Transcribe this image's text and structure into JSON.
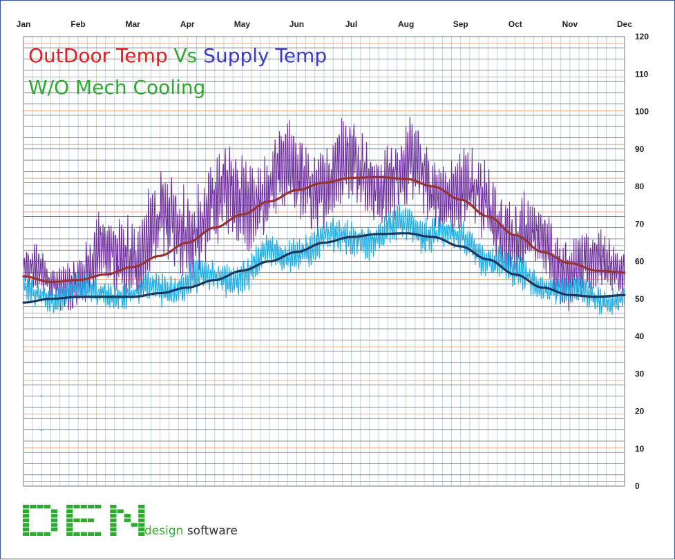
{
  "chart_data": {
    "type": "line",
    "title_parts": [
      {
        "text": "OutDoor Temp",
        "color": "#e02020"
      },
      {
        "text": " Vs ",
        "color": "#2eaa2e"
      },
      {
        "text": "Supply Temp",
        "color": "#3b3bc8"
      }
    ],
    "subtitle": {
      "text": "W/O Mech Cooling",
      "color": "#2eaa2e"
    },
    "x_tick_labels": [
      "Jan",
      "Feb",
      "Mar",
      "Apr",
      "May",
      "Jun",
      "Jul",
      "Aug",
      "Sep",
      "Oct",
      "Nov",
      "Dec"
    ],
    "y_tick_labels": [
      "0",
      "10",
      "20",
      "30",
      "40",
      "50",
      "60",
      "70",
      "80",
      "90",
      "100",
      "110",
      "120"
    ],
    "ylim": [
      0,
      120
    ],
    "y_axis_side": "right",
    "x_axis_side": "top",
    "grid": true,
    "series": [
      {
        "role": "outdoor-hourly",
        "color": "#7030a0",
        "x_months": [
          0,
          0.5,
          1,
          1.5,
          2,
          2.5,
          3,
          3.5,
          4,
          4.5,
          5,
          5.5,
          6,
          6.5,
          7,
          7.5,
          8,
          8.5,
          9,
          9.5,
          10,
          10.5,
          11
        ],
        "values_mid": [
          57,
          54,
          56,
          60,
          64,
          67,
          71,
          74,
          77,
          80,
          81,
          83,
          84,
          83,
          83,
          81,
          78,
          74,
          68,
          63,
          60,
          58,
          58
        ],
        "values_amp": [
          9,
          6,
          8,
          11,
          14,
          13,
          14,
          13,
          14,
          12,
          13,
          12,
          13,
          11,
          12,
          11,
          11,
          12,
          11,
          10,
          10,
          9,
          8
        ]
      },
      {
        "role": "supply-hourly",
        "color": "#1fb0e8",
        "x_months": [
          0,
          0.5,
          1,
          1.5,
          2,
          2.5,
          3,
          3.5,
          4,
          4.5,
          5,
          5.5,
          6,
          6.5,
          7,
          7.5,
          8,
          8.5,
          9,
          9.5,
          10,
          10.5,
          11
        ],
        "values_mid": [
          52,
          51,
          52,
          52,
          51,
          53,
          55,
          55,
          57,
          61,
          63,
          65,
          67,
          66,
          70,
          68,
          65,
          62,
          56,
          54,
          52,
          50,
          50
        ],
        "values_amp": [
          4,
          4,
          4,
          4,
          4,
          5,
          5,
          5,
          5,
          5,
          5,
          5,
          5,
          5,
          5,
          5,
          5,
          5,
          5,
          4,
          4,
          4,
          4
        ]
      },
      {
        "role": "outdoor-trend",
        "color": "#983232",
        "x_months": [
          0,
          0.5,
          1,
          1.5,
          2,
          2.5,
          3,
          3.5,
          4,
          4.5,
          5,
          5.5,
          6,
          6.5,
          7,
          7.5,
          8,
          8.5,
          9,
          9.5,
          10,
          10.5,
          11
        ],
        "values": [
          56,
          54.5,
          55,
          56.5,
          58.5,
          61.5,
          65,
          69,
          72.5,
          76,
          79,
          81,
          82.3,
          82.5,
          82,
          80,
          76.5,
          72,
          67,
          62.5,
          59.5,
          57.5,
          57
        ]
      },
      {
        "role": "supply-trend",
        "color": "#17375e",
        "x_months": [
          0,
          0.5,
          1,
          1.5,
          2,
          2.5,
          3,
          3.5,
          4,
          4.5,
          5,
          5.5,
          6,
          6.5,
          7,
          7.5,
          8,
          8.5,
          9,
          9.5,
          10,
          10.5,
          11
        ],
        "values": [
          49,
          50,
          50.5,
          50.5,
          50.5,
          51.5,
          53,
          55,
          57.5,
          60,
          62.5,
          65,
          66.5,
          67.3,
          67.5,
          66.5,
          64,
          60.5,
          56.5,
          53,
          51,
          50.5,
          51
        ]
      }
    ],
    "outlier_points": [
      {
        "series": "supply-hourly",
        "x_month": 0.33,
        "y": 33
      },
      {
        "series": "supply-hourly",
        "x_month": 0.33,
        "y": 24
      },
      {
        "series": "supply-hourly",
        "x_month": 0.33,
        "y": 15
      }
    ]
  },
  "logo": {
    "brand": "DEN",
    "design": "design",
    "software": "software",
    "color": "#2eaa2e"
  }
}
